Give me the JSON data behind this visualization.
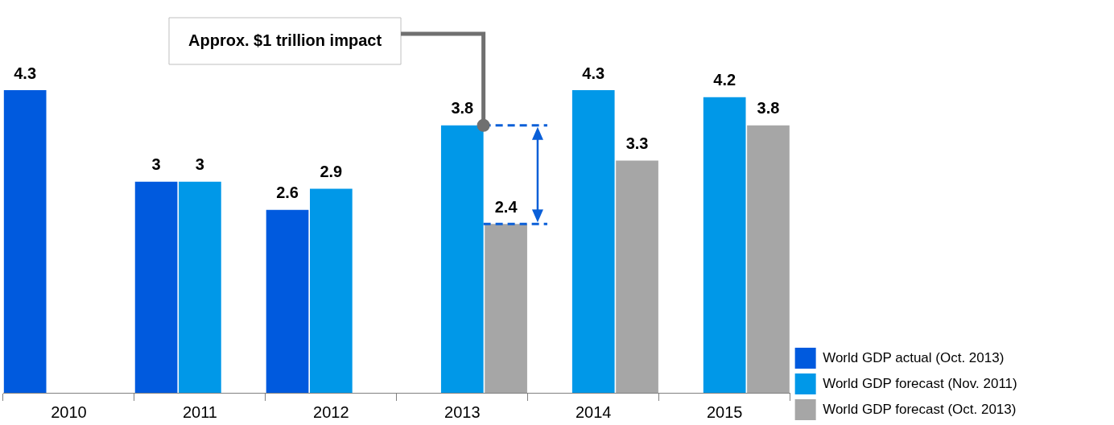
{
  "chart_data": {
    "type": "bar",
    "categories": [
      "2010",
      "2011",
      "2012",
      "2013",
      "2014",
      "2015"
    ],
    "series": [
      {
        "name": "World GDP actual (Oct. 2013)",
        "color": "#005ade",
        "values": [
          4.3,
          3,
          2.6,
          null,
          null,
          null
        ]
      },
      {
        "name": "World GDP forecast (Nov. 2011)",
        "color": "#0098e8",
        "values": [
          null,
          3,
          2.9,
          3.8,
          4.3,
          4.2
        ]
      },
      {
        "name": "World GDP forecast (Oct. 2013)",
        "color": "#a6a6a6",
        "values": [
          null,
          null,
          null,
          2.4,
          3.3,
          3.8
        ]
      }
    ],
    "data_labels": true,
    "legend": "bottom right",
    "annotations": [
      "Approx. $1 trillion impact"
    ]
  }
}
